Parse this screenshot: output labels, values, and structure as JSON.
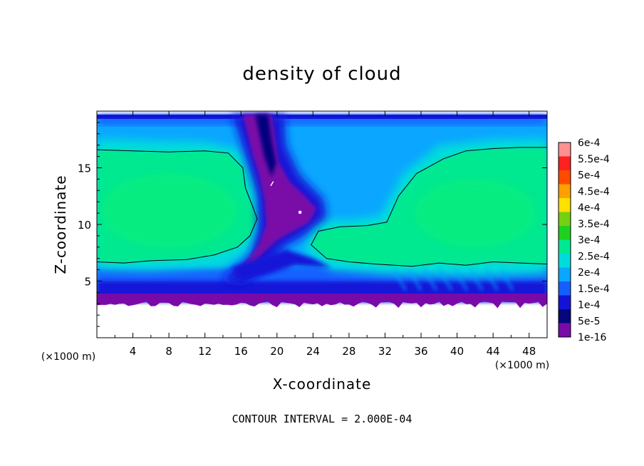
{
  "chart_data": {
    "type": "heatmap",
    "title": "density of cloud",
    "xlabel": "X-coordinate",
    "ylabel": "Z-coordinate",
    "x_unit": "(×1000 m)",
    "y_unit": "(×1000 m)",
    "xlim": [
      0,
      50
    ],
    "ylim": [
      0,
      20
    ],
    "x_ticks": [
      4,
      8,
      12,
      16,
      20,
      24,
      28,
      32,
      36,
      40,
      44,
      48
    ],
    "y_ticks": [
      5,
      10,
      15
    ],
    "footnote": "CONTOUR INTERVAL = 2.000E-04",
    "colorbar": {
      "levels": [
        "1e-16",
        "5e-5",
        "1e-4",
        "1.5e-4",
        "2e-4",
        "2.5e-4",
        "3e-4",
        "3.5e-4",
        "4e-4",
        "4.5e-4",
        "5e-4",
        "5.5e-4",
        "6e-4"
      ],
      "colors": [
        "#7a0aa8",
        "#06067e",
        "#1313d8",
        "#1460ff",
        "#0aa6ff",
        "#00dcdc",
        "#00e890",
        "#20d020",
        "#74d010",
        "#ffe000",
        "#ffa000",
        "#ff4a00",
        "#ff2020",
        "#ff9090"
      ]
    },
    "fields": {
      "cloud_top_z": 19.7,
      "cloud_base_z": 3.2,
      "green_core_left": {
        "x": [
          0,
          16.5
        ],
        "z": [
          6.6,
          16.6
        ],
        "value": "2.5e-4"
      },
      "green_core_right": {
        "x": [
          23.5,
          50
        ],
        "z": [
          6.0,
          16.8
        ],
        "value": "2.5e-4"
      },
      "purple_channel_x": [
        16,
        24
      ],
      "contour_level": "2e-4"
    }
  }
}
